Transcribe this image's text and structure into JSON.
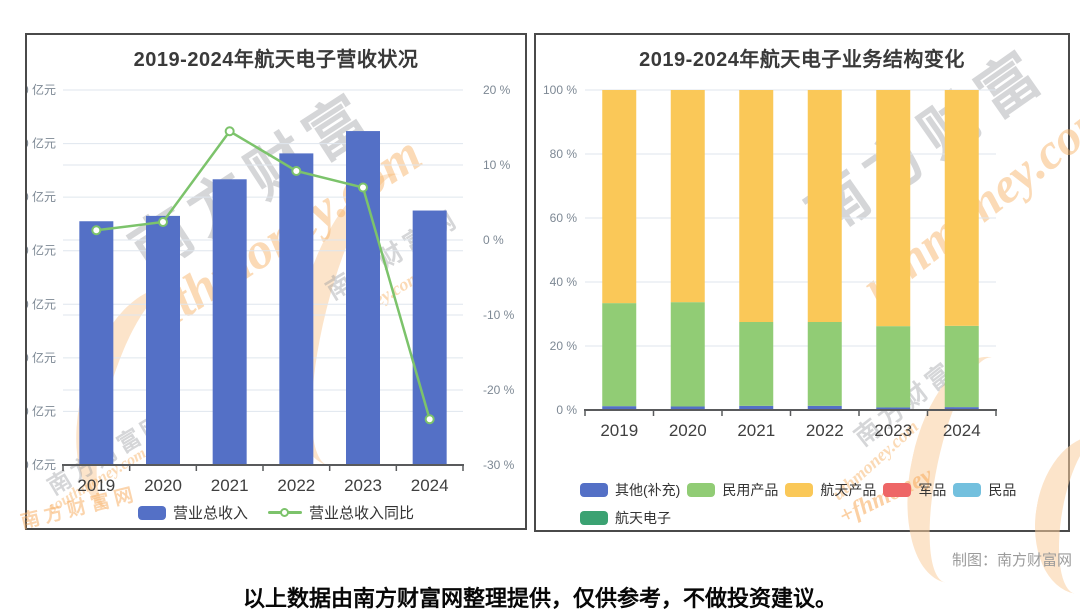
{
  "page": {
    "footer": "以上数据由南方财富网整理提供，仅供参考，不做投资建议。",
    "credit": "制图：南方财富网"
  },
  "watermark": {
    "brand_cn": "南方财富网",
    "brand_cn_short": "南方财富",
    "brand_en": "southmoney.com",
    "brand_en_mid": "uthmoney.com",
    "brand_en_tail": "ey.com",
    "brand_en_frag": "+fhmoney"
  },
  "colors": {
    "bar_blue": "#5470c6",
    "line_green": "#7cc36b",
    "civil_green": "#91cc75",
    "aero_yellow": "#fac858",
    "military_red": "#ee6666",
    "minpin_blue": "#73c0de",
    "aeroelec_teal": "#3ba272",
    "grid": "#dfe6ee",
    "axis": "#595a5c",
    "tick_text": "#7d8894",
    "category_text": "#404040",
    "title_text": "#3a3a3a",
    "panel_border": "#4a4a4a",
    "watermark_orange": "#f5a95f",
    "watermark_gray": "#97999e"
  },
  "chart_data": [
    {
      "id": "revenue",
      "type": "bar-line-combo",
      "title": "2019-2024年航天电子营收状况",
      "categories": [
        "2019",
        "2020",
        "2021",
        "2022",
        "2023",
        "2024"
      ],
      "series": [
        {
          "name": "营业总收入",
          "type": "bar",
          "axis": "left",
          "unit": "亿元",
          "color": "#5470c6",
          "values": [
            136.5,
            139.5,
            160,
            174.5,
            187,
            142.5
          ]
        },
        {
          "name": "营业总收入同比",
          "type": "line",
          "axis": "right",
          "unit": "%",
          "color": "#7cc36b",
          "values": [
            1.3,
            2.4,
            14.5,
            9.2,
            7.0,
            -23.9
          ]
        }
      ],
      "left_axis": {
        "min": 0,
        "max": 210,
        "step": 30,
        "suffix": " 亿元"
      },
      "right_axis": {
        "min": -30,
        "max": 20,
        "step": 10,
        "suffix": " %"
      },
      "grid": true,
      "legend_position": "bottom"
    },
    {
      "id": "structure",
      "type": "stacked-bar-100",
      "title": "2019-2024年航天电子业务结构变化",
      "categories": [
        "2019",
        "2020",
        "2021",
        "2022",
        "2023",
        "2024"
      ],
      "series": [
        {
          "name": "其他(补充)",
          "color": "#5470c6",
          "values": [
            1.2,
            1.1,
            1.3,
            1.3,
            0.8,
            0.9
          ]
        },
        {
          "name": "民用产品",
          "color": "#91cc75",
          "values": [
            32.2,
            32.6,
            26.2,
            26.2,
            25.4,
            25.4
          ]
        },
        {
          "name": "航天产品",
          "color": "#fac858",
          "values": [
            66.6,
            66.3,
            72.5,
            72.5,
            73.8,
            73.7
          ]
        },
        {
          "name": "军品",
          "color": "#ee6666",
          "values": [
            0,
            0,
            0,
            0,
            0,
            0
          ]
        },
        {
          "name": "民品",
          "color": "#73c0de",
          "values": [
            0,
            0,
            0,
            0,
            0,
            0
          ]
        },
        {
          "name": "航天电子",
          "color": "#3ba272",
          "values": [
            0,
            0,
            0,
            0,
            0,
            0
          ]
        }
      ],
      "y_axis": {
        "min": 0,
        "max": 100,
        "step": 20,
        "suffix": " %"
      },
      "grid": true,
      "legend_position": "bottom"
    }
  ]
}
